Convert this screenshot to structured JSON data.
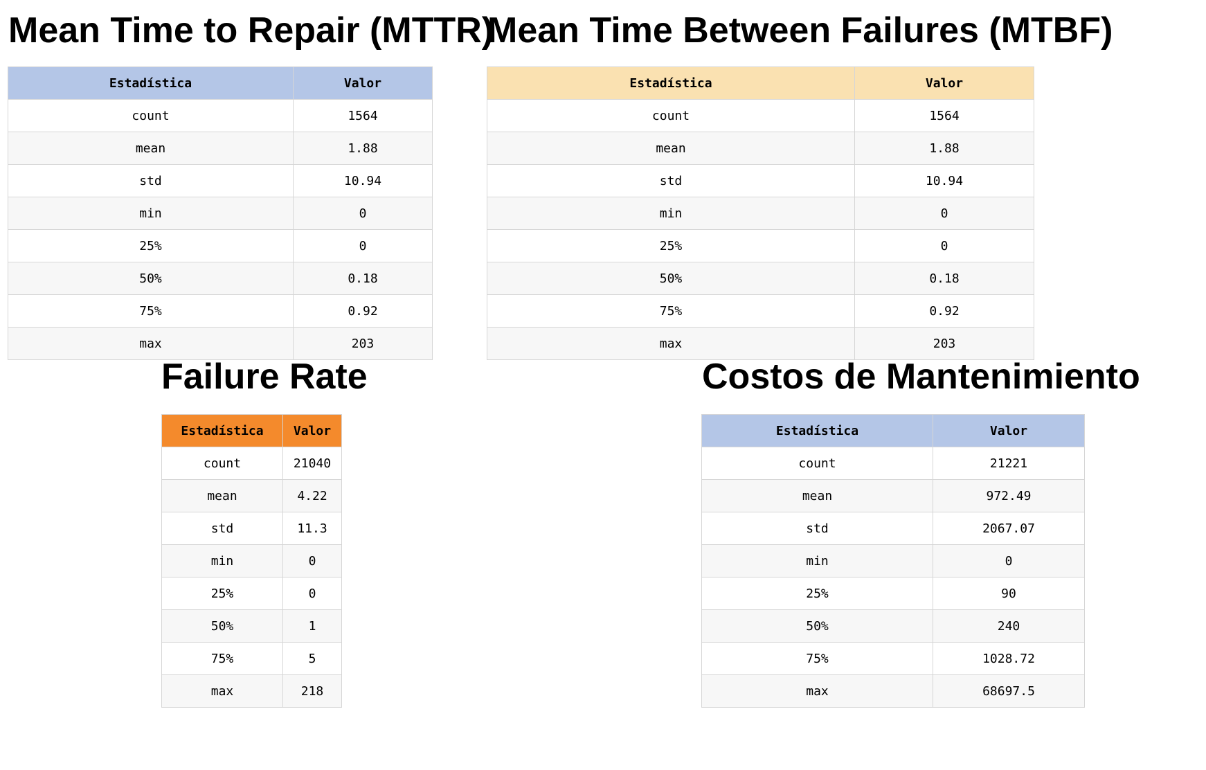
{
  "colors": {
    "header_blue": "#b4c6e7",
    "header_yellow": "#fae1b1",
    "header_orange": "#f48a2c",
    "row_alt": "#f7f7f7",
    "border": "#d6d6d6"
  },
  "headers": {
    "statistic": "Estadística",
    "value": "Valor"
  },
  "tables": [
    {
      "id": "mttr",
      "title": "Mean Time to Repair (MTTR)",
      "header_color": "#b4c6e7",
      "rows": [
        {
          "stat": "count",
          "value": "1564"
        },
        {
          "stat": "mean",
          "value": "1.88"
        },
        {
          "stat": "std",
          "value": "10.94"
        },
        {
          "stat": "min",
          "value": "0"
        },
        {
          "stat": "25%",
          "value": "0"
        },
        {
          "stat": "50%",
          "value": "0.18"
        },
        {
          "stat": "75%",
          "value": "0.92"
        },
        {
          "stat": "max",
          "value": "203"
        }
      ]
    },
    {
      "id": "mtbf",
      "title": "Mean Time Between Failures (MTBF)",
      "header_color": "#fae1b1",
      "rows": [
        {
          "stat": "count",
          "value": "1564"
        },
        {
          "stat": "mean",
          "value": "1.88"
        },
        {
          "stat": "std",
          "value": "10.94"
        },
        {
          "stat": "min",
          "value": "0"
        },
        {
          "stat": "25%",
          "value": "0"
        },
        {
          "stat": "50%",
          "value": "0.18"
        },
        {
          "stat": "75%",
          "value": "0.92"
        },
        {
          "stat": "max",
          "value": "203"
        }
      ]
    },
    {
      "id": "failure-rate",
      "title": "Failure Rate",
      "header_color": "#f48a2c",
      "rows": [
        {
          "stat": "count",
          "value": "21040"
        },
        {
          "stat": "mean",
          "value": "4.22"
        },
        {
          "stat": "std",
          "value": "11.3"
        },
        {
          "stat": "min",
          "value": "0"
        },
        {
          "stat": "25%",
          "value": "0"
        },
        {
          "stat": "50%",
          "value": "1"
        },
        {
          "stat": "75%",
          "value": "5"
        },
        {
          "stat": "max",
          "value": "218"
        }
      ]
    },
    {
      "id": "maintenance-costs",
      "title": "Costos de Mantenimiento",
      "header_color": "#b4c6e7",
      "rows": [
        {
          "stat": "count",
          "value": "21221"
        },
        {
          "stat": "mean",
          "value": "972.49"
        },
        {
          "stat": "std",
          "value": "2067.07"
        },
        {
          "stat": "min",
          "value": "0"
        },
        {
          "stat": "25%",
          "value": "90"
        },
        {
          "stat": "50%",
          "value": "240"
        },
        {
          "stat": "75%",
          "value": "1028.72"
        },
        {
          "stat": "max",
          "value": "68697.5"
        }
      ]
    }
  ]
}
